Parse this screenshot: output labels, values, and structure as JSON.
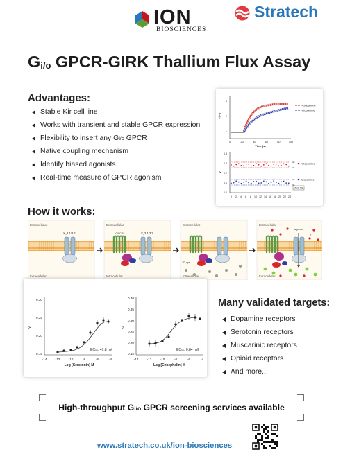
{
  "brand": {
    "ion_name": "ION",
    "ion_subtitle": "BIOSCIENCES",
    "stratech_name": "Stratech",
    "ion_colors": [
      "#2a78b8",
      "#c4161c",
      "#5a9e3a"
    ],
    "stratech_color": "#2a78b8",
    "stratech_mark_color": "#e0393e"
  },
  "title": {
    "prefix": "G",
    "subscript": "i/o",
    "rest": " GPCR-GIRK Thallium Flux Assay"
  },
  "advantages": {
    "heading": "Advantages:",
    "items": [
      {
        "text": "Stable Kir cell line"
      },
      {
        "text": "Works with transient and stable GPCR expression"
      },
      {
        "text": "Flexibility to insert any G",
        "subscript": "i/o",
        "suffix": " GPCR"
      },
      {
        "text": "Native coupling mechanism"
      },
      {
        "text": "Identify biased agonists"
      },
      {
        "text": "Real-time measure of GPCR agonism"
      }
    ]
  },
  "flux_figure": {
    "trace_chart": {
      "ylabel": "F/F0",
      "xlabel": "Time (s)",
      "x_ticks": [
        "0",
        "20",
        "40",
        "60",
        "80",
        "100"
      ],
      "y_ticks": [
        "1",
        "2",
        "3"
      ],
      "legend": [
        "+Dopamine",
        "-Dopamine"
      ],
      "colors": [
        "#d62728",
        "#2c3fa6"
      ]
    },
    "ratio_chart": {
      "ylabel": "V",
      "x_ticks": [
        "0",
        "2",
        "4",
        "6",
        "8",
        "10",
        "12",
        "14",
        "16",
        "18",
        "20",
        "22",
        "24"
      ],
      "y_ticks": [
        "0.0",
        "0.1",
        "0.2",
        "0.3",
        "0.4"
      ],
      "legend": [
        "+Dopamine",
        "-Dopamine"
      ],
      "z_label": "Z'=0.59"
    }
  },
  "how_it_works": {
    "heading": "How it works:",
    "panels": [
      {
        "top": "Extracellular",
        "bottom": "Intracellular",
        "channel": "K",
        "channel_sub": "ir",
        "channel_suffix": "3.1/3.2"
      },
      {
        "top": "Extracellular",
        "bottom": "Intracellular",
        "gpcr": "GPCR",
        "channel": "K",
        "channel_sub": "ir",
        "channel_suffix": "3.1/3.2"
      },
      {
        "top": "Extracellular",
        "bottom": "Intracellular",
        "dye": "Tl",
        "dye_sup": "+",
        "dye_suffix": " dye"
      },
      {
        "top": "Extracellular",
        "bottom": "Intracellular",
        "agonist": "agonist",
        "ion": "Tl",
        "ion_sup": "+"
      }
    ]
  },
  "dose_response": {
    "serotonin": {
      "ylabel": "V",
      "xlabel": "Log [Serotonin] M",
      "ec50": "EC",
      "ec50_sub": "50",
      "ec50_value": ": 47.8 nM",
      "x_ticks": [
        "-14",
        "-12",
        "-10",
        "-8",
        "-6",
        "-4"
      ],
      "y_ticks": [
        "0.15",
        "0.20",
        "0.25",
        "0.30"
      ]
    },
    "enkephalin": {
      "ylabel": "V",
      "xlabel": "Log [Enkephalin] M",
      "ec50": "EC",
      "ec50_sub": "50",
      "ec50_value": ": 0.84 nM",
      "x_ticks": [
        "-14",
        "-12",
        "-10",
        "-8",
        "-6",
        "-4"
      ],
      "y_ticks": [
        "0.15",
        "0.20",
        "0.25",
        "0.30",
        "0.35",
        "0.40"
      ]
    }
  },
  "targets": {
    "heading": "Many validated targets:",
    "items": [
      "Dopamine receptors",
      "Serotonin receptors",
      "Muscarinic receptors",
      "Opioid receptors",
      "And more..."
    ]
  },
  "cta": {
    "prefix": "High-throughput G",
    "subscript": "i/o",
    "rest": " GPCR screening services available"
  },
  "footer": {
    "url": "www.stratech.co.uk/ion-biosciences"
  }
}
